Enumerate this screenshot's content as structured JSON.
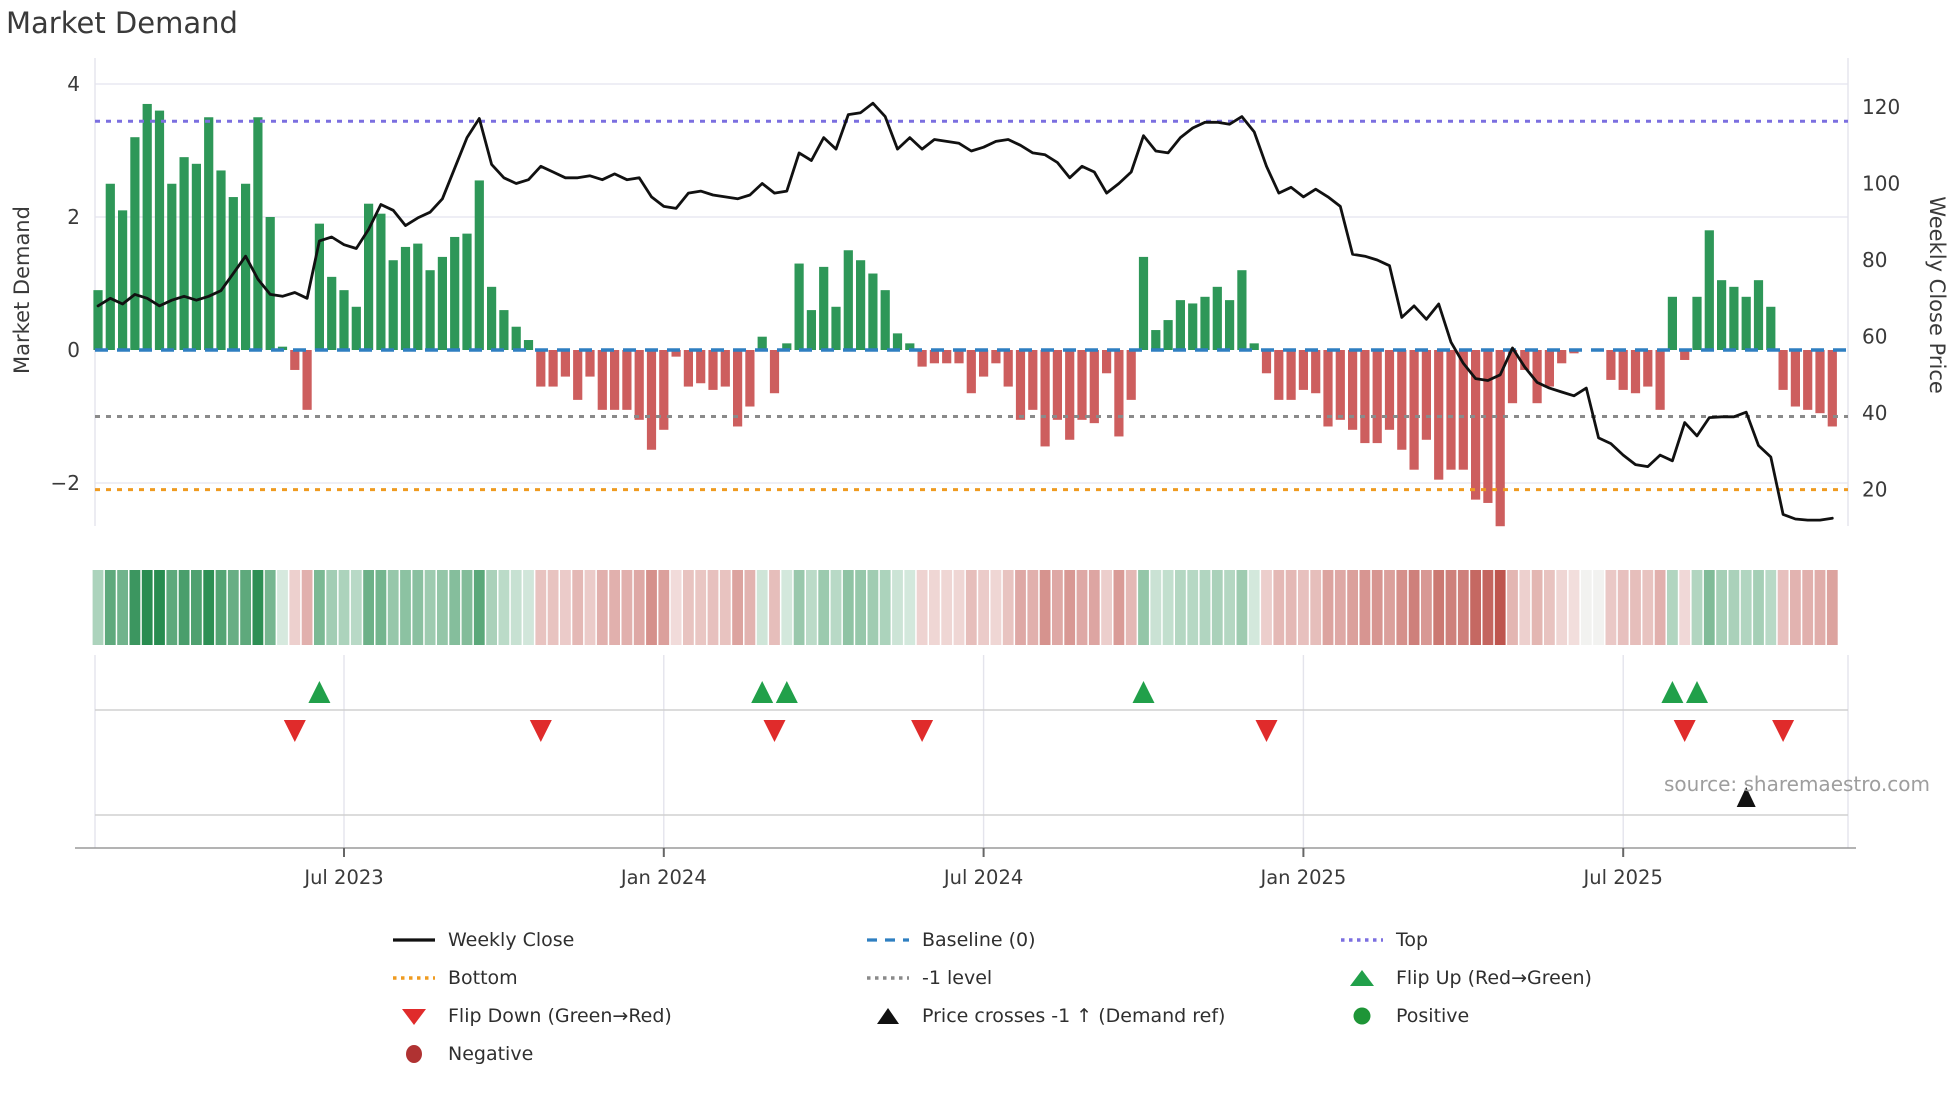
{
  "title": "Market Demand",
  "source": {
    "text": "source: sharemaestro.com"
  },
  "axes": {
    "left": {
      "title": "Market Demand",
      "ticks": [
        4,
        2,
        0,
        -2
      ]
    },
    "right": {
      "title": "Weekly Close Price",
      "ticks": [
        120,
        100,
        80,
        60,
        40,
        20
      ]
    },
    "x": {
      "tick_labels": [
        "Jul 2023",
        "Jan 2024",
        "Jul 2024",
        "Jan 2025",
        "Jul 2025"
      ],
      "tick_weeks": [
        20,
        46,
        72,
        98,
        124
      ]
    }
  },
  "legend": {
    "items": [
      {
        "label": "Weekly Close",
        "marker": "line-solid-black"
      },
      {
        "label": "Bottom",
        "marker": "line-dotted-orange"
      },
      {
        "label": "Flip Down (Green→Red)",
        "marker": "triangle-down-red"
      },
      {
        "label": "Negative",
        "marker": "circle-darkred"
      },
      {
        "label": "Baseline (0)",
        "marker": "line-dashed-blue"
      },
      {
        "label": "-1 level",
        "marker": "line-dotted-gray"
      },
      {
        "label": "Price crosses -1 ↑ (Demand ref)",
        "marker": "triangle-up-black"
      },
      {
        "label": "Top",
        "marker": "line-dotted-purple"
      },
      {
        "label": "Flip Up (Red→Green)",
        "marker": "triangle-up-green"
      },
      {
        "label": "Positive",
        "marker": "circle-green"
      }
    ]
  },
  "colors": {
    "bar_positive": "#2e9758",
    "bar_negative": "#cd5e5e",
    "price_line": "#111111",
    "baseline": "#2f7fc1",
    "top_line": "#7b6fe0",
    "bottom_line": "#ef9b20",
    "minus_one_line": "#8a8a8a",
    "flip_up": "#21a04a",
    "flip_down": "#e02b2b",
    "price_cross": "#111111",
    "positive_dot": "#1e9537",
    "negative_dot": "#b03232",
    "grid": "#e9e9f2",
    "row_line": "#d0d0d0",
    "spine": "#9a9a9a",
    "tick_text": "#3a3a3a",
    "heat_green_rgb": [
      40,
      140,
      80
    ],
    "heat_red_rgb": [
      190,
      85,
      78
    ]
  },
  "chart_data": {
    "type": "combo_bar_line_heatmap",
    "title": "Market Demand",
    "x_unit": "week",
    "start_date": "2023-02-13",
    "n_weeks": 142,
    "ylim_left_demand": [
      -2.7,
      4.35
    ],
    "ylim_right_price": [
      10,
      132
    ],
    "levels": {
      "baseline": 0,
      "top": 3.44,
      "minus_one": -1,
      "bottom": -2.1
    },
    "series": [
      {
        "name": "Market Demand",
        "type": "bar",
        "axis": "left",
        "values_key": "demand"
      },
      {
        "name": "Weekly Close",
        "type": "line",
        "axis": "right",
        "values_key": "price"
      }
    ],
    "demand": [
      0.9,
      2.5,
      2.1,
      3.2,
      3.7,
      3.6,
      2.5,
      2.9,
      2.8,
      3.5,
      2.7,
      2.3,
      2.5,
      3.5,
      2.0,
      0.05,
      -0.3,
      -0.9,
      1.9,
      1.1,
      0.9,
      0.65,
      2.2,
      2.05,
      1.35,
      1.55,
      1.6,
      1.2,
      1.4,
      1.7,
      1.75,
      2.55,
      0.95,
      0.6,
      0.35,
      0.15,
      -0.55,
      -0.55,
      -0.4,
      -0.75,
      -0.4,
      -0.9,
      -0.9,
      -0.9,
      -1.05,
      -1.5,
      -1.2,
      -0.1,
      -0.55,
      -0.5,
      -0.6,
      -0.55,
      -1.15,
      -0.85,
      0.2,
      -0.65,
      0.1,
      1.3,
      0.6,
      1.25,
      0.65,
      1.5,
      1.35,
      1.15,
      0.9,
      0.25,
      0.1,
      -0.25,
      -0.2,
      -0.2,
      -0.2,
      -0.65,
      -0.4,
      -0.2,
      -0.55,
      -1.05,
      -0.9,
      -1.45,
      -1.05,
      -1.35,
      -1.05,
      -1.1,
      -0.35,
      -1.3,
      -0.75,
      1.4,
      0.3,
      0.45,
      0.75,
      0.7,
      0.8,
      0.95,
      0.75,
      1.2,
      0.1,
      -0.35,
      -0.75,
      -0.75,
      -0.6,
      -0.65,
      -1.15,
      -1.05,
      -1.2,
      -1.4,
      -1.4,
      -1.2,
      -1.5,
      -1.8,
      -1.35,
      -1.95,
      -1.8,
      -1.8,
      -2.25,
      -2.3,
      -2.65,
      -0.8,
      -0.3,
      -0.8,
      -0.55,
      -0.2,
      -0.05,
      0,
      0,
      -0.45,
      -0.6,
      -0.65,
      -0.55,
      -0.9,
      0.8,
      -0.15,
      0.8,
      1.8,
      1.05,
      0.95,
      0.8,
      1.05,
      0.65,
      -0.6,
      -0.85,
      -0.9,
      -0.95,
      -1.15
    ],
    "price": [
      68,
      70,
      68.5,
      71,
      70,
      68,
      69.5,
      70.5,
      69.5,
      70.5,
      72,
      76.5,
      81,
      75,
      71,
      70.5,
      71.5,
      70,
      85,
      86,
      84,
      83,
      88,
      94.5,
      93,
      89,
      91,
      92.5,
      96,
      104,
      112,
      117,
      105,
      101.5,
      100,
      101,
      104.5,
      103,
      101.5,
      101.5,
      102,
      101,
      102.5,
      101,
      101.5,
      96.5,
      94,
      93.5,
      97.5,
      98,
      97,
      96.5,
      96,
      97,
      100,
      97.5,
      98,
      108,
      106,
      112,
      109,
      118,
      118.5,
      121,
      117.5,
      109,
      112,
      109,
      111.5,
      111,
      110.5,
      108.5,
      109.5,
      111,
      111.5,
      110,
      108,
      107.5,
      105.5,
      101.5,
      104.5,
      103,
      97.5,
      100,
      103,
      112.5,
      108.5,
      108,
      112,
      114.5,
      116,
      116,
      115.5,
      117.5,
      113.5,
      104.5,
      97.5,
      99,
      96.5,
      98.5,
      96.5,
      94,
      81.5,
      81,
      80,
      78.5,
      65,
      68,
      64.5,
      68.5,
      58.5,
      53,
      49,
      48.5,
      50,
      57,
      52,
      48,
      46.5,
      45.5,
      44.5,
      46.5,
      33.5,
      32,
      29,
      26.5,
      26,
      29,
      27.5,
      37.5,
      34,
      38.8,
      39,
      39,
      40.2,
      31.5,
      28.5,
      13.5,
      12.3,
      12,
      12,
      12.5
    ],
    "markers": {
      "flip_up": {
        "weeks": [
          18,
          54,
          56,
          85,
          128,
          130
        ],
        "dates": [
          "2023-06-19",
          "2024-02-26",
          "2024-03-11",
          "2024-09-30",
          "2025-07-28",
          "2025-08-11"
        ]
      },
      "flip_down": {
        "weeks": [
          16,
          36,
          55,
          67,
          95,
          129,
          137
        ],
        "dates": [
          "2023-06-05",
          "2023-10-23",
          "2024-03-04",
          "2024-05-27",
          "2024-12-09",
          "2025-08-04",
          "2025-09-29"
        ]
      },
      "price_cross": {
        "weeks": [
          134
        ],
        "dates": [
          "2025-09-08"
        ]
      }
    },
    "heatmap": "diverging green-to-red strip encoding weekly demand values",
    "legend_position": "bottom",
    "grid": true
  }
}
